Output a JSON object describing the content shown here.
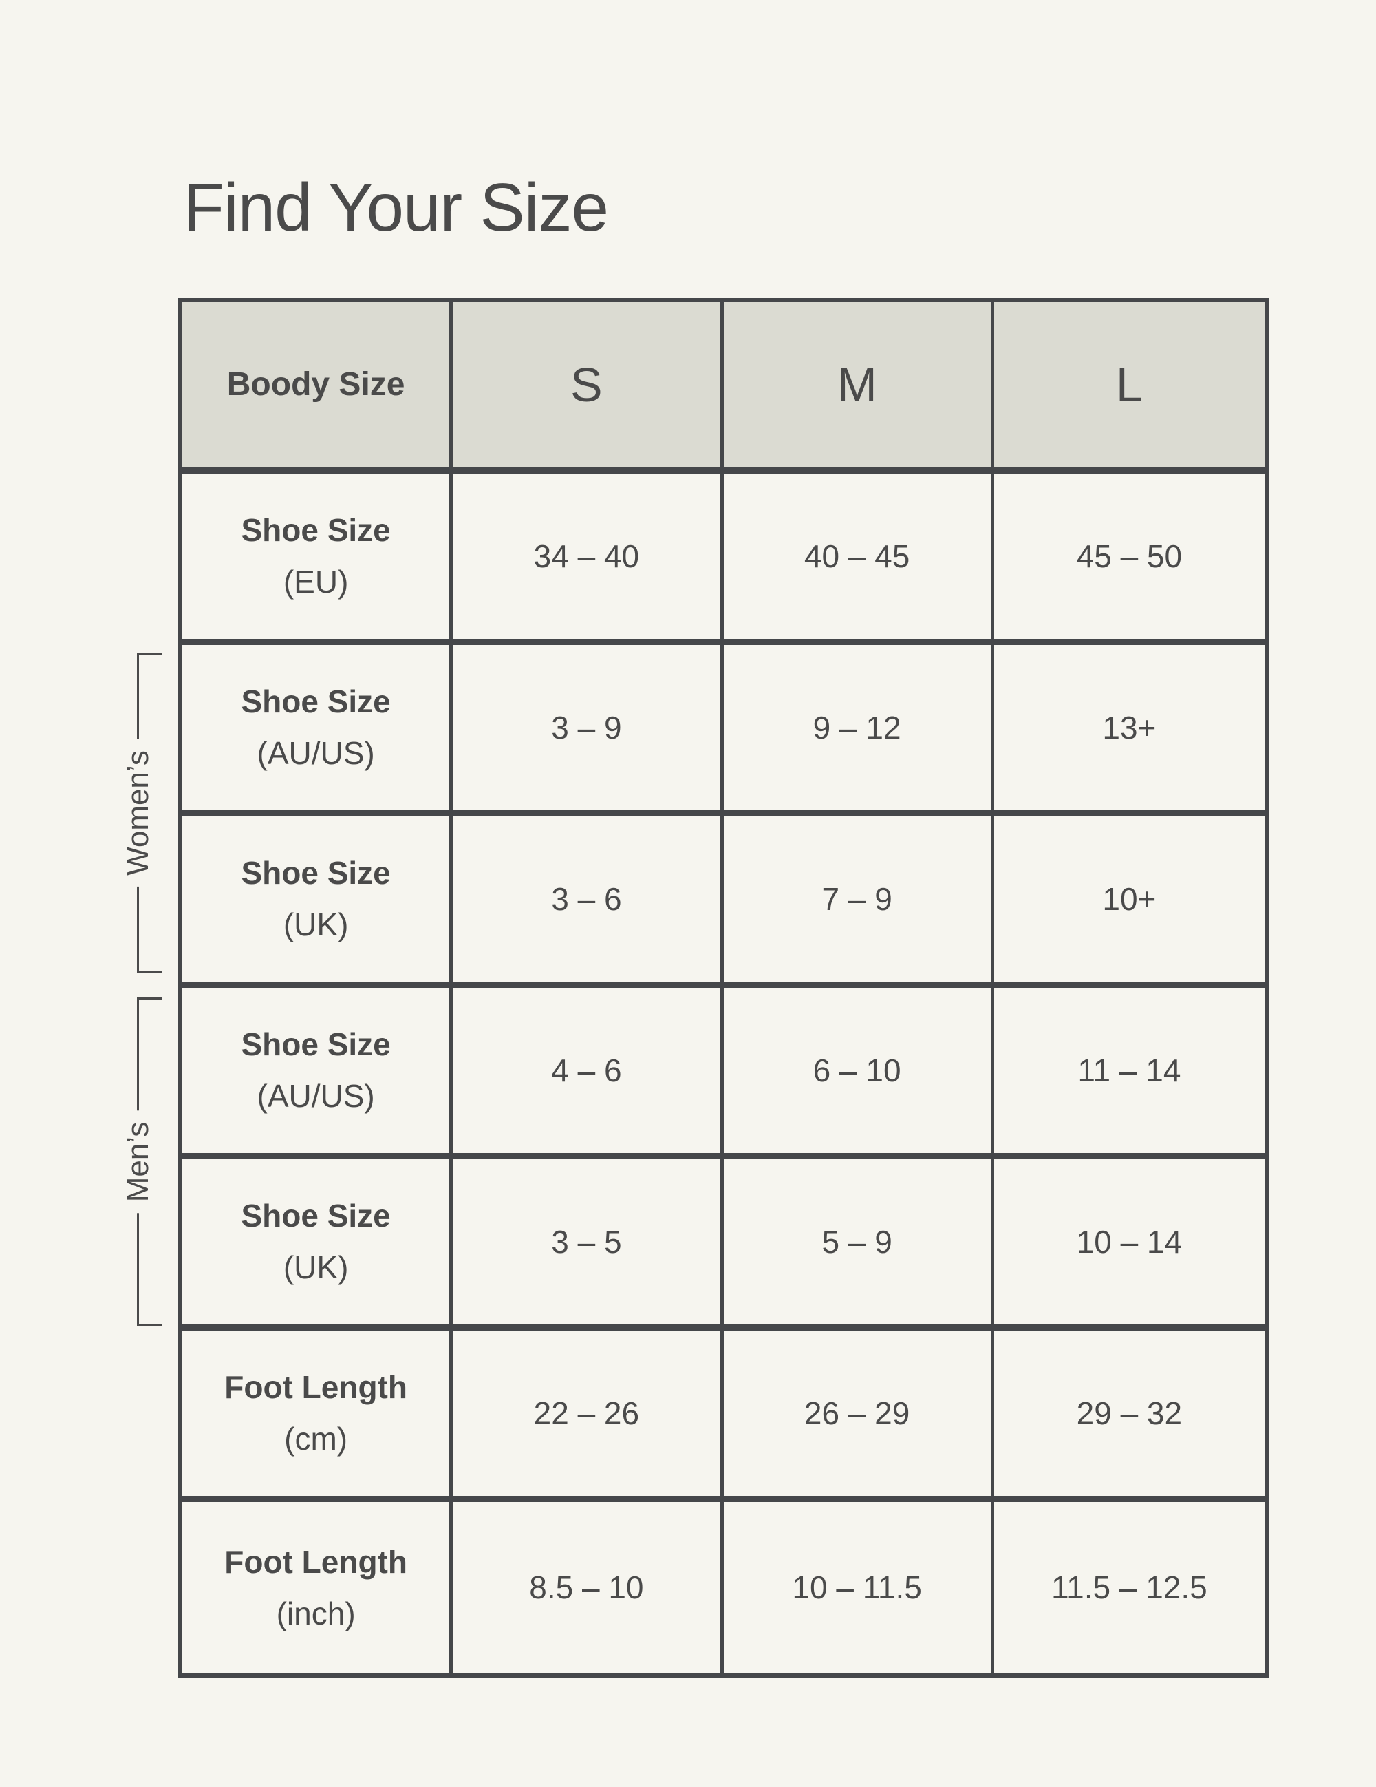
{
  "page": {
    "title": "Find Your Size",
    "background_color": "#f6f5ef",
    "text_color": "#4a4a4a"
  },
  "table": {
    "border_color": "#45474a",
    "header_fill_color": "#dbdbd2",
    "header": {
      "label": "Boody Size",
      "sizes": [
        "S",
        "M",
        "L"
      ]
    },
    "groups": {
      "womens": "Women’s",
      "mens": "Men’s"
    },
    "rows": [
      {
        "label": "Shoe Size",
        "unit": "(EU)",
        "group": "",
        "values": [
          "34 – 40",
          "40 – 45",
          "45 – 50"
        ]
      },
      {
        "label": "Shoe Size",
        "unit": "(AU/US)",
        "group": "womens",
        "values": [
          "3 – 9",
          "9 – 12",
          "13+"
        ]
      },
      {
        "label": "Shoe Size",
        "unit": "(UK)",
        "group": "womens",
        "values": [
          "3 – 6",
          "7 – 9",
          "10+"
        ]
      },
      {
        "label": "Shoe Size",
        "unit": "(AU/US)",
        "group": "mens",
        "values": [
          "4 – 6",
          "6 – 10",
          "11 – 14"
        ]
      },
      {
        "label": "Shoe Size",
        "unit": "(UK)",
        "group": "mens",
        "values": [
          "3 – 5",
          "5 – 9",
          "10 – 14"
        ]
      },
      {
        "label": "Foot Length",
        "unit": "(cm)",
        "group": "",
        "values": [
          "22 – 26",
          "26 – 29",
          "29 – 32"
        ]
      },
      {
        "label": "Foot Length",
        "unit": "(inch)",
        "group": "",
        "values": [
          "8.5 – 10",
          "10 – 11.5",
          "11.5 – 12.5"
        ]
      }
    ]
  },
  "chart_data": {
    "type": "table",
    "title": "Find Your Size",
    "columns": [
      "Boody Size",
      "S",
      "M",
      "L"
    ],
    "rows": [
      [
        "Shoe Size (EU)",
        "34 – 40",
        "40 – 45",
        "45 – 50"
      ],
      [
        "Women’s Shoe Size (AU/US)",
        "3 – 9",
        "9 – 12",
        "13+"
      ],
      [
        "Women’s Shoe Size (UK)",
        "3 – 6",
        "7 – 9",
        "10+"
      ],
      [
        "Men’s Shoe Size (AU/US)",
        "4 – 6",
        "6 – 10",
        "11 – 14"
      ],
      [
        "Men’s Shoe Size (UK)",
        "3 – 5",
        "5 – 9",
        "10 – 14"
      ],
      [
        "Foot Length (cm)",
        "22 – 26",
        "26 – 29",
        "29 – 32"
      ],
      [
        "Foot Length (inch)",
        "8.5 – 10",
        "10 – 11.5",
        "11.5 – 12.5"
      ]
    ]
  }
}
